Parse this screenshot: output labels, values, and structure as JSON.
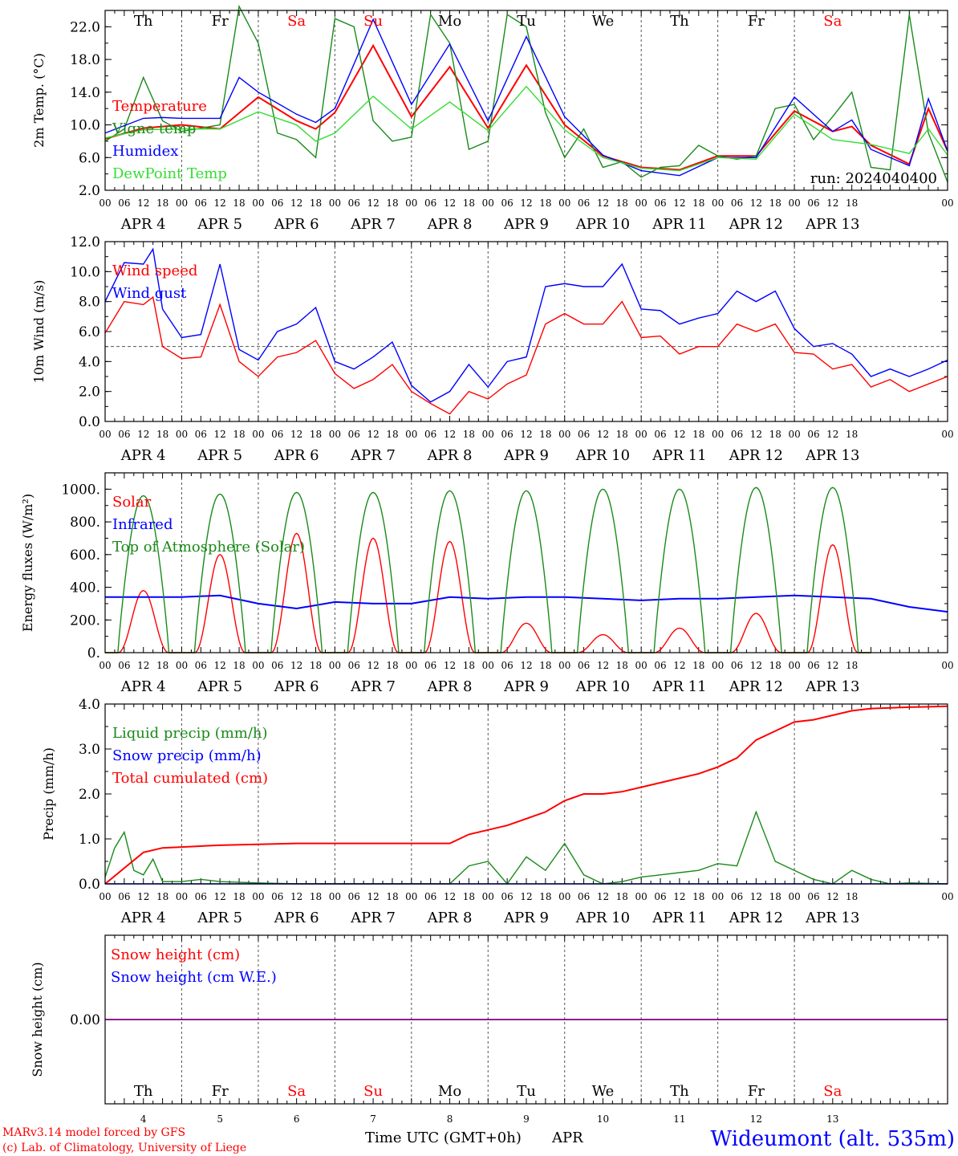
{
  "chart_data": [
    {
      "type": "line",
      "ylabel": "2m Temp. (°C)",
      "ylim": [
        2,
        24
      ],
      "yticks": [
        "2.0",
        "6.0",
        "10.0",
        "14.0",
        "18.0",
        "22.0"
      ],
      "annotation": "run: 2024040400",
      "series": [
        {
          "name": "Temperature",
          "color": "#ff0000",
          "x": [
            0,
            12,
            18,
            24,
            36,
            48,
            60,
            66,
            72,
            84,
            96,
            108,
            120,
            132,
            144,
            156,
            168,
            180,
            192,
            204,
            216,
            228,
            234,
            240,
            252,
            258,
            264
          ],
          "y": [
            8.3,
            9.6,
            9.8,
            10.0,
            9.5,
            13.4,
            10.5,
            9.5,
            11.5,
            19.7,
            11.0,
            17.1,
            9.6,
            17.3,
            10.0,
            6.2,
            4.8,
            4.5,
            6.2,
            6.2,
            11.7,
            9.2,
            9.8,
            7.5,
            5.2,
            12.0,
            6.8
          ]
        },
        {
          "name": "Vigne temp",
          "color": "#1a8a1a",
          "x": [
            0,
            6,
            12,
            18,
            24,
            36,
            42,
            48,
            54,
            60,
            66,
            72,
            78,
            84,
            90,
            96,
            102,
            108,
            114,
            120,
            126,
            132,
            138,
            144,
            150,
            156,
            162,
            168,
            174,
            180,
            186,
            192,
            198,
            204,
            210,
            216,
            222,
            228,
            234,
            240,
            246,
            252,
            258,
            264
          ],
          "y": [
            8.0,
            9.5,
            15.8,
            10.5,
            9.2,
            10.0,
            24.5,
            20.0,
            9.0,
            8.2,
            6.0,
            23.0,
            22.0,
            10.5,
            8.0,
            8.5,
            23.5,
            20.0,
            7.0,
            8.0,
            23.5,
            22.0,
            11.5,
            6.0,
            9.5,
            4.8,
            5.5,
            3.6,
            4.8,
            5.0,
            7.5,
            6.2,
            5.8,
            6.2,
            12.0,
            12.5,
            8.2,
            11.0,
            14.0,
            4.8,
            4.5,
            23.5,
            9.0,
            3.0
          ]
        },
        {
          "name": "Humidex",
          "color": "#0000ff",
          "x": [
            0,
            12,
            18,
            24,
            36,
            42,
            48,
            60,
            66,
            72,
            84,
            96,
            108,
            120,
            132,
            144,
            156,
            168,
            180,
            192,
            204,
            216,
            228,
            234,
            240,
            252,
            258,
            264
          ],
          "y": [
            9.0,
            10.8,
            10.9,
            10.8,
            10.8,
            15.8,
            14.0,
            11.3,
            10.3,
            12.0,
            22.9,
            12.5,
            19.9,
            10.5,
            20.8,
            11.0,
            6.3,
            4.4,
            3.8,
            6.0,
            6.0,
            13.4,
            9.2,
            10.6,
            7.0,
            5.0,
            13.2,
            6.8
          ]
        },
        {
          "name": "DewPoint Temp",
          "color": "#33dd33",
          "x": [
            0,
            12,
            24,
            36,
            48,
            60,
            66,
            72,
            84,
            96,
            108,
            120,
            132,
            144,
            156,
            168,
            180,
            192,
            204,
            216,
            228,
            240,
            252,
            258,
            264
          ],
          "y": [
            8.4,
            9.4,
            9.5,
            9.5,
            11.6,
            10.0,
            8.0,
            9.0,
            13.5,
            9.5,
            12.8,
            9.3,
            14.7,
            9.4,
            6.0,
            4.7,
            4.4,
            6.0,
            5.8,
            11.3,
            8.2,
            7.6,
            6.5,
            9.5,
            6.3
          ]
        }
      ]
    },
    {
      "type": "line",
      "ylabel": "10m Wind (m/s)",
      "ylim": [
        0,
        12
      ],
      "yticks": [
        "0.0",
        "2.0",
        "4.0",
        "6.0",
        "8.0",
        "10.0",
        "12.0"
      ],
      "reference_line": 5,
      "series": [
        {
          "name": "Wind speed",
          "color": "#ff0000",
          "x": [
            0,
            6,
            12,
            15,
            18,
            24,
            30,
            36,
            42,
            48,
            54,
            60,
            66,
            72,
            78,
            84,
            90,
            96,
            102,
            108,
            114,
            120,
            126,
            132,
            138,
            144,
            150,
            156,
            162,
            168,
            174,
            180,
            186,
            192,
            198,
            204,
            210,
            216,
            222,
            228,
            234,
            240,
            246,
            252,
            258,
            264
          ],
          "y": [
            5.9,
            8.0,
            7.8,
            8.3,
            5.0,
            4.2,
            4.3,
            7.8,
            4.0,
            3.0,
            4.3,
            4.6,
            5.4,
            3.2,
            2.2,
            2.8,
            3.8,
            2.0,
            1.2,
            0.5,
            2.0,
            1.5,
            2.5,
            3.1,
            6.5,
            7.2,
            6.5,
            6.5,
            8.0,
            5.6,
            5.7,
            4.5,
            5.0,
            5.0,
            6.5,
            6.0,
            6.5,
            4.6,
            4.5,
            3.5,
            3.8,
            2.3,
            2.8,
            2.0,
            2.5,
            3.0
          ]
        },
        {
          "name": "Wind gust",
          "color": "#0000ff",
          "x": [
            0,
            6,
            12,
            15,
            18,
            24,
            30,
            36,
            42,
            48,
            54,
            60,
            66,
            72,
            78,
            84,
            90,
            96,
            102,
            108,
            114,
            120,
            126,
            132,
            138,
            144,
            150,
            156,
            162,
            168,
            174,
            180,
            186,
            192,
            198,
            204,
            210,
            216,
            222,
            228,
            234,
            240,
            246,
            252,
            258,
            264
          ],
          "y": [
            8.0,
            10.6,
            10.5,
            11.5,
            7.5,
            5.6,
            5.8,
            10.5,
            4.8,
            4.1,
            6.0,
            6.5,
            7.6,
            4.0,
            3.5,
            4.3,
            5.3,
            2.4,
            1.3,
            2.0,
            3.8,
            2.3,
            4.0,
            4.3,
            9.0,
            9.2,
            9.0,
            9.0,
            10.5,
            7.5,
            7.4,
            6.5,
            6.9,
            7.2,
            8.7,
            8.0,
            8.7,
            6.2,
            5.0,
            5.2,
            4.5,
            3.0,
            3.5,
            3.0,
            3.5,
            4.1
          ]
        }
      ]
    },
    {
      "type": "line",
      "ylabel": "Energy fluxes (W/m²)",
      "ylim": [
        0,
        1100
      ],
      "yticks": [
        "0.",
        "200.",
        "400.",
        "600.",
        "800.",
        "1000."
      ],
      "series": [
        {
          "name": "Solar",
          "color": "#ff0000",
          "days": [
            0,
            1,
            2,
            3,
            4,
            5,
            6,
            7,
            8,
            9
          ],
          "peaks": [
            380,
            600,
            730,
            700,
            680,
            180,
            110,
            150,
            240,
            660
          ]
        },
        {
          "name": "Infrared",
          "color": "#0000ff",
          "x": [
            0,
            24,
            36,
            48,
            60,
            72,
            84,
            96,
            108,
            120,
            132,
            144,
            156,
            168,
            180,
            192,
            204,
            216,
            228,
            240,
            252,
            264
          ],
          "y": [
            340,
            340,
            350,
            300,
            270,
            310,
            300,
            300,
            340,
            330,
            340,
            340,
            330,
            320,
            330,
            330,
            340,
            350,
            340,
            330,
            280,
            250
          ]
        },
        {
          "name": "Top of Atmosphere (Solar)",
          "color": "#1a8a1a",
          "days": [
            0,
            1,
            2,
            3,
            4,
            5,
            6,
            7,
            8,
            9
          ],
          "peaks": [
            960,
            970,
            980,
            980,
            990,
            990,
            1000,
            1000,
            1010,
            1010
          ]
        }
      ]
    },
    {
      "type": "line",
      "ylabel": "Precip (mm/h)",
      "ylim": [
        0,
        4
      ],
      "yticks": [
        "0.0",
        "1.0",
        "2.0",
        "3.0",
        "4.0"
      ],
      "series": [
        {
          "name": "Liquid precip (mm/h)",
          "color": "#1a8a1a",
          "x": [
            0,
            3,
            6,
            9,
            12,
            15,
            18,
            24,
            30,
            36,
            48,
            60,
            72,
            96,
            108,
            114,
            120,
            126,
            132,
            138,
            144,
            150,
            156,
            162,
            168,
            174,
            180,
            186,
            192,
            198,
            204,
            210,
            216,
            222,
            228,
            234,
            240,
            246,
            252,
            264
          ],
          "y": [
            0.15,
            0.8,
            1.15,
            0.3,
            0.2,
            0.55,
            0.05,
            0.05,
            0.1,
            0.05,
            0.02,
            0.0,
            0.0,
            0.0,
            0.0,
            0.4,
            0.5,
            0.0,
            0.6,
            0.3,
            0.9,
            0.2,
            0.0,
            0.05,
            0.15,
            0.2,
            0.25,
            0.3,
            0.45,
            0.4,
            1.6,
            0.5,
            0.3,
            0.1,
            0.0,
            0.3,
            0.1,
            0.0,
            0.02,
            0.0
          ]
        },
        {
          "name": "Snow precip (mm/h)",
          "color": "#0000ff",
          "x": [
            0,
            264
          ],
          "y": [
            0.0,
            0.0
          ]
        },
        {
          "name": "Total cumulated (cm)",
          "color": "#ff0000",
          "x": [
            0,
            6,
            12,
            18,
            24,
            36,
            48,
            60,
            72,
            84,
            96,
            108,
            114,
            120,
            126,
            132,
            138,
            144,
            150,
            156,
            162,
            168,
            174,
            180,
            186,
            192,
            198,
            204,
            210,
            216,
            222,
            228,
            234,
            240,
            252,
            264
          ],
          "y": [
            0.0,
            0.35,
            0.7,
            0.8,
            0.82,
            0.86,
            0.88,
            0.9,
            0.9,
            0.9,
            0.9,
            0.9,
            1.1,
            1.2,
            1.3,
            1.45,
            1.6,
            1.85,
            2.0,
            2.0,
            2.05,
            2.15,
            2.25,
            2.35,
            2.45,
            2.6,
            2.8,
            3.2,
            3.4,
            3.6,
            3.65,
            3.75,
            3.85,
            3.9,
            3.93,
            3.95
          ]
        }
      ]
    },
    {
      "type": "line",
      "ylabel": "Snow height (cm)",
      "yticks": [
        "0.00"
      ],
      "series": [
        {
          "name": "Snow height (cm)",
          "color": "#ff0000",
          "x": [
            0,
            264
          ],
          "y": [
            0.0,
            0.0
          ]
        },
        {
          "name": "Snow height (cm W.E.)",
          "color": "#0000ff",
          "x": [
            0,
            264
          ],
          "y": [
            0.0,
            0.0
          ]
        }
      ]
    }
  ],
  "hour_ticks": [
    "00",
    "06",
    "12",
    "18"
  ],
  "date_labels": [
    "APR  4",
    "APR  5",
    "APR  6",
    "APR  7",
    "APR  8",
    "APR  9",
    "APR 10",
    "APR 11",
    "APR 12",
    "APR 13"
  ],
  "days": [
    {
      "abbr": "Th",
      "color": "#000000",
      "num": "4"
    },
    {
      "abbr": "Fr",
      "color": "#000000",
      "num": "5"
    },
    {
      "abbr": "Sa",
      "color": "#ff0000",
      "num": "6"
    },
    {
      "abbr": "Su",
      "color": "#ff0000",
      "num": "7"
    },
    {
      "abbr": "Mo",
      "color": "#000000",
      "num": "8"
    },
    {
      "abbr": "Tu",
      "color": "#000000",
      "num": "9"
    },
    {
      "abbr": "We",
      "color": "#000000",
      "num": "10"
    },
    {
      "abbr": "Th",
      "color": "#000000",
      "num": "11"
    },
    {
      "abbr": "Fr",
      "color": "#000000",
      "num": "12"
    },
    {
      "abbr": "Sa",
      "color": "#ff0000",
      "num": "13"
    }
  ],
  "footer": {
    "credit_line1": "MARv3.14 model forced by GFS",
    "credit_line2": "(c) Lab. of Climatology, University of Liege",
    "xlabel": "Time UTC (GMT+0h)",
    "month": "APR",
    "station": "Wideumont (alt. 535m)"
  },
  "colors": {
    "credit": "#ff0000",
    "station": "#0000ff",
    "snow_line": "#7f007f"
  }
}
